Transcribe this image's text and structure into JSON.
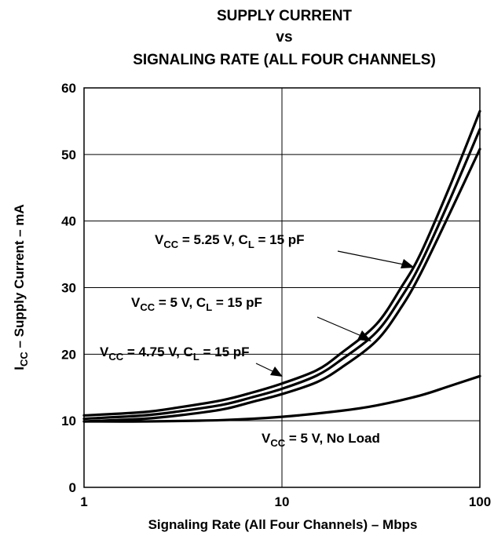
{
  "chart_data": {
    "type": "line",
    "title": [
      "SUPPLY CURRENT",
      "vs",
      "SIGNALING RATE (ALL FOUR CHANNELS)"
    ],
    "xlabel": "Signaling Rate (All Four Channels) – Mbps",
    "ylabel": {
      "prefix": "I",
      "sub": "CC",
      "rest": " – Supply Current – mA"
    },
    "xscale": "log",
    "xlim": [
      1,
      100
    ],
    "ylim": [
      0,
      60
    ],
    "xticks": [
      1,
      10,
      100
    ],
    "xtick_labels": [
      "1",
      "10",
      "100"
    ],
    "yticks": [
      0,
      10,
      20,
      30,
      40,
      50,
      60
    ],
    "ytick_labels": [
      "0",
      "10",
      "20",
      "30",
      "40",
      "50",
      "60"
    ],
    "grid": true,
    "legend": "none",
    "line_color": "#000000",
    "series": [
      {
        "label": {
          "a": "V",
          "a_sub": "CC",
          "b": " = 5.25 V, C",
          "b_sub": "L",
          "c": " = 15 pF"
        },
        "x": [
          1,
          2,
          3,
          5,
          7,
          10,
          15,
          20,
          30,
          40,
          50,
          70,
          100
        ],
        "y": [
          10.8,
          11.3,
          12.0,
          13.1,
          14.2,
          15.6,
          17.6,
          20.2,
          24.5,
          30.0,
          35.0,
          45.0,
          56.5
        ]
      },
      {
        "label": {
          "a": "V",
          "a_sub": "CC",
          "b": " = 5 V, C",
          "b_sub": "L",
          "c": " = 15 pF"
        },
        "x": [
          1,
          2,
          3,
          5,
          7,
          10,
          15,
          20,
          30,
          40,
          50,
          70,
          100
        ],
        "y": [
          10.3,
          10.8,
          11.4,
          12.4,
          13.5,
          14.8,
          16.8,
          19.2,
          23.3,
          28.5,
          33.5,
          43.0,
          53.8
        ]
      },
      {
        "label": {
          "a": "V",
          "a_sub": "CC",
          "b": " = 4.75 V, C",
          "b_sub": "L",
          "c": " = 15 pF"
        },
        "x": [
          1,
          2,
          3,
          5,
          7,
          10,
          15,
          20,
          30,
          40,
          50,
          70,
          100
        ],
        "y": [
          9.9,
          10.3,
          10.8,
          11.7,
          12.8,
          14.0,
          15.8,
          18.0,
          22.0,
          27.0,
          32.0,
          41.0,
          50.8
        ]
      },
      {
        "label": {
          "a": "V",
          "a_sub": "CC",
          "b": " = 5 V, No Load",
          "b_sub": "",
          "c": ""
        },
        "x": [
          1,
          2,
          5,
          10,
          20,
          30,
          50,
          70,
          100
        ],
        "y": [
          9.9,
          9.9,
          10.1,
          10.6,
          11.5,
          12.3,
          13.8,
          15.2,
          16.7
        ]
      }
    ]
  }
}
